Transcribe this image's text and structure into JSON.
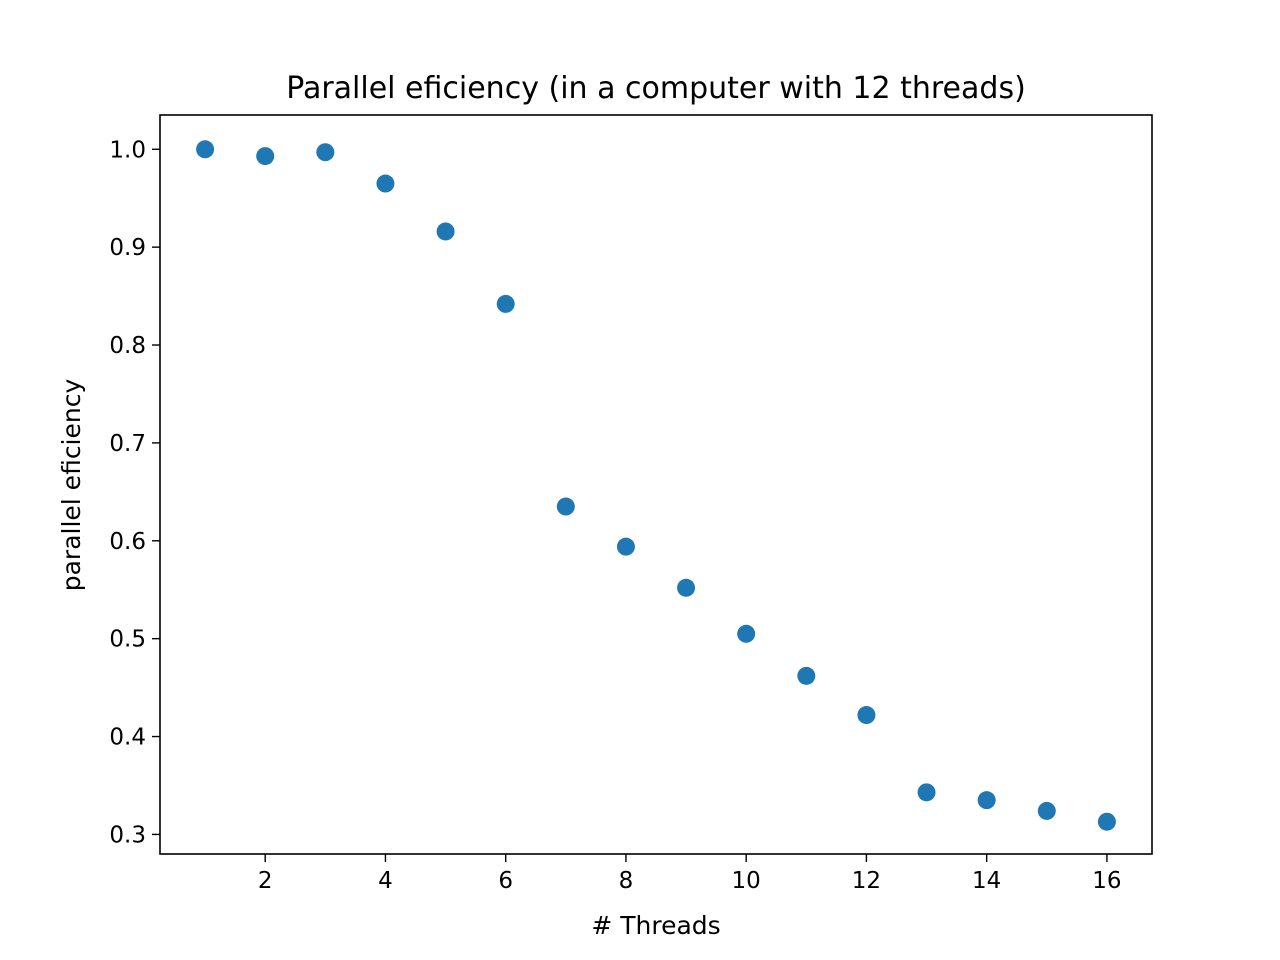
{
  "chart_data": {
    "type": "scatter",
    "title": "Parallel eficiency (in a computer with 12 threads)",
    "xlabel": "# Threads",
    "ylabel": "parallel eficiency",
    "x": [
      1,
      2,
      3,
      4,
      5,
      6,
      7,
      8,
      9,
      10,
      11,
      12,
      13,
      14,
      15,
      16
    ],
    "y": [
      1.0,
      0.993,
      0.997,
      0.965,
      0.916,
      0.842,
      0.635,
      0.594,
      0.552,
      0.505,
      0.462,
      0.422,
      0.343,
      0.335,
      0.324,
      0.313
    ],
    "xlim": [
      0.25,
      16.75
    ],
    "ylim": [
      0.28,
      1.035
    ],
    "xticks": [
      2,
      4,
      6,
      8,
      10,
      12,
      14,
      16
    ],
    "xtick_labels": [
      "2",
      "4",
      "6",
      "8",
      "10",
      "12",
      "14",
      "16"
    ],
    "yticks": [
      0.3,
      0.4,
      0.5,
      0.6,
      0.7,
      0.8,
      0.9,
      1.0
    ],
    "ytick_labels": [
      "0.3",
      "0.4",
      "0.5",
      "0.6",
      "0.7",
      "0.8",
      "0.9",
      "1.0"
    ],
    "marker_color": "#1f77b4",
    "grid": false,
    "legend": "none"
  }
}
